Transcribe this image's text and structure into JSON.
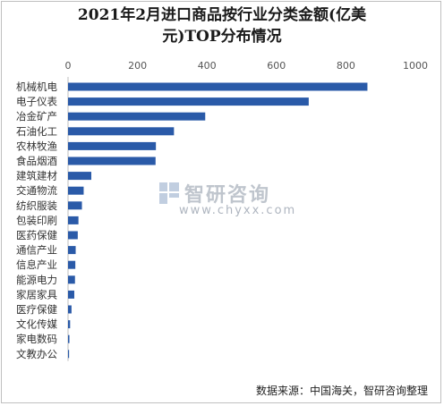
{
  "chart_data": {
    "type": "bar",
    "orientation": "horizontal",
    "title_line1": "2021年2月进口商品按行业分类金额(亿美",
    "title_line2": "元)TOP分布情况",
    "categories": [
      "机械机电",
      "电子仪表",
      "冶金矿产",
      "石油化工",
      "农林牧渔",
      "食品烟酒",
      "建筑建材",
      "交通物流",
      "纺织服装",
      "包装印刷",
      "医药保健",
      "通信产业",
      "信息产业",
      "能源电力",
      "家居家具",
      "医疗保健",
      "文化传媒",
      "家电数码",
      "文教办公"
    ],
    "values": [
      862,
      693,
      395,
      305,
      253,
      252,
      67,
      45,
      40,
      30,
      28,
      22,
      21,
      20,
      18,
      10,
      6,
      4,
      3
    ],
    "xlim": [
      0,
      1000
    ],
    "xticks": [
      "0",
      "200",
      "400",
      "600",
      "800",
      "1000"
    ],
    "bar_color": "#2a5aa8",
    "axis_position": "top",
    "grid": false
  },
  "watermark": {
    "name": "智研咨询",
    "url": "www.chyxx.com"
  },
  "source": "数据来源：中国海关，智研咨询整理"
}
